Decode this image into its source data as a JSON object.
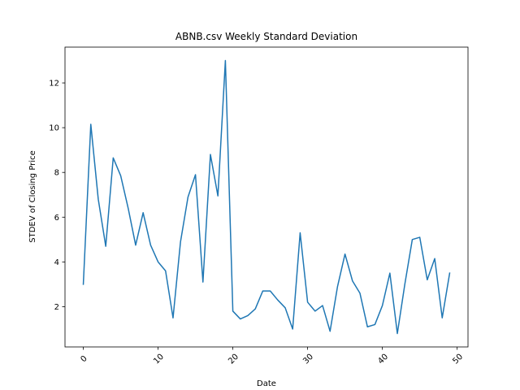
{
  "chart_data": {
    "type": "line",
    "title": "ABNB.csv Weekly Standard Deviation",
    "xlabel": "Date",
    "ylabel": "STDEV of Closing Price",
    "xlim": [
      -2.45,
      51.45
    ],
    "ylim": [
      0.2,
      13.6
    ],
    "xticks": [
      0,
      10,
      20,
      30,
      40,
      50
    ],
    "yticks": [
      2,
      4,
      6,
      8,
      10,
      12
    ],
    "xtick_labels": [
      "0",
      "10",
      "20",
      "30",
      "40",
      "50"
    ],
    "ytick_labels": [
      "2",
      "4",
      "6",
      "8",
      "10",
      "12"
    ],
    "xtick_rotation": 45,
    "grid": false,
    "color": "#1f77b4",
    "series": [
      {
        "x": [
          0,
          1,
          2,
          3,
          4,
          5,
          6,
          7,
          8,
          9,
          10,
          11,
          12,
          13,
          14,
          15,
          16,
          17,
          18,
          19,
          20,
          21,
          22,
          23,
          24,
          25,
          26,
          27,
          28,
          29,
          30,
          31,
          32,
          33,
          34,
          35,
          36,
          37,
          38,
          39,
          40,
          41,
          42,
          43,
          44,
          45,
          46,
          47,
          48,
          49
        ],
        "values": [
          3.0,
          10.15,
          6.8,
          4.7,
          8.65,
          7.85,
          6.4,
          4.75,
          6.2,
          4.75,
          4.0,
          3.6,
          1.5,
          4.9,
          6.9,
          7.9,
          3.1,
          8.8,
          6.95,
          13.0,
          1.8,
          1.45,
          1.6,
          1.9,
          2.7,
          2.7,
          2.3,
          1.95,
          1.0,
          5.3,
          2.2,
          1.8,
          2.05,
          0.9,
          2.9,
          4.35,
          3.15,
          2.6,
          1.1,
          1.2,
          2.05,
          3.5,
          0.8,
          3.0,
          5.0,
          5.1,
          3.2,
          4.15,
          1.5,
          3.5
        ]
      }
    ]
  }
}
